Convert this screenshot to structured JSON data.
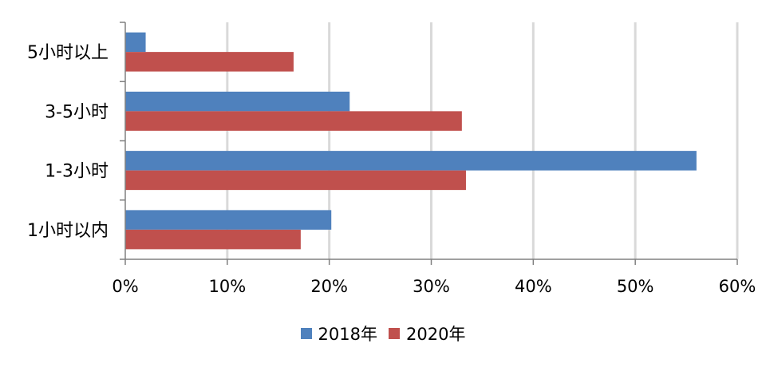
{
  "chart_data": {
    "type": "bar",
    "orientation": "horizontal",
    "categories": [
      "1小时以内",
      "1-3小时",
      "3-5小时",
      "5小时以上"
    ],
    "series": [
      {
        "name": "2018年",
        "color": "#4f81bd",
        "values": [
          20.2,
          56.0,
          22.0,
          2.0
        ]
      },
      {
        "name": "2020年",
        "color": "#c0504d",
        "values": [
          17.2,
          33.4,
          33.0,
          16.5
        ]
      }
    ],
    "xlim": [
      0,
      60
    ],
    "x_ticks": [
      "0%",
      "10%",
      "20%",
      "30%",
      "40%",
      "50%",
      "60%"
    ],
    "x_tick_values": [
      0,
      10,
      20,
      30,
      40,
      50,
      60
    ],
    "grid": true,
    "legend": "bottom"
  }
}
